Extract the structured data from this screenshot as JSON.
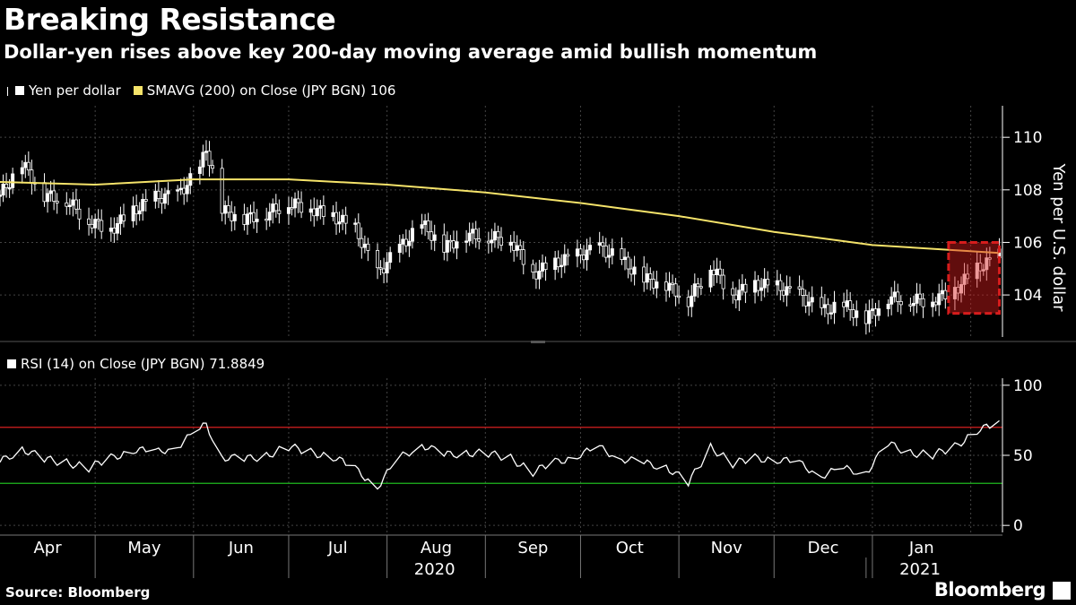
{
  "title": "Breaking Resistance",
  "subtitle": "Dollar-yen rises above key 200-day moving average amid bullish momentum",
  "legend_top": {
    "series1": "Yen per dollar",
    "series2": "SMAVG (200)  on Close (JPY BGN) 106"
  },
  "legend_bottom": {
    "series1": "RSI (14)  on Close (JPY BGN) 71.8849"
  },
  "source": "Source: Bloomberg",
  "brand": "Bloomberg",
  "colors": {
    "price": "#ffffff",
    "sma": "#f5e36a",
    "rsi": "#ffffff",
    "overbought": "#d62020",
    "oversold": "#1fb81f",
    "highlight": "#d61c1c"
  },
  "chart_data": [
    {
      "type": "candlestick",
      "ylabel": "Yen per U.S. dollar",
      "ylim": [
        102.4,
        111.2
      ],
      "yticks": [
        104,
        106,
        108,
        110
      ],
      "months": [
        "Apr",
        "May",
        "Jun",
        "Jul",
        "Aug",
        "Sep",
        "Oct",
        "Nov",
        "Dec",
        "Jan"
      ],
      "year_labels": [
        "2020",
        "2021"
      ],
      "series": [
        {
          "name": "Yen per dollar",
          "x": [
            "Apr 1",
            "Apr 8",
            "Apr 15",
            "Apr 22",
            "Apr 29",
            "May 6",
            "May 13",
            "May 20",
            "May 27",
            "Jun 3",
            "Jun 5",
            "Jun 10",
            "Jun 17",
            "Jun 24",
            "Jul 1",
            "Jul 8",
            "Jul 15",
            "Jul 22",
            "Jul 29",
            "Aug 5",
            "Aug 12",
            "Aug 19",
            "Aug 26",
            "Sep 2",
            "Sep 9",
            "Sep 16",
            "Sep 23",
            "Sep 30",
            "Oct 7",
            "Oct 14",
            "Oct 21",
            "Oct 28",
            "Nov 4",
            "Nov 11",
            "Nov 18",
            "Nov 25",
            "Dec 2",
            "Dec 9",
            "Dec 16",
            "Dec 23",
            "Dec 30",
            "Jan 6",
            "Jan 13",
            "Jan 20",
            "Jan 27",
            "Feb 3",
            "Feb 10"
          ],
          "values": [
            107.8,
            109.0,
            107.8,
            107.6,
            106.8,
            106.5,
            107.2,
            107.7,
            107.8,
            108.8,
            109.6,
            107.2,
            106.9,
            107.1,
            107.5,
            107.3,
            107.0,
            106.5,
            104.8,
            105.8,
            106.7,
            105.8,
            106.3,
            106.2,
            106.1,
            104.8,
            105.2,
            105.5,
            105.8,
            105.3,
            104.6,
            104.4,
            103.8,
            105.1,
            104.0,
            104.4,
            104.3,
            104.0,
            103.4,
            103.6,
            103.1,
            103.9,
            103.8,
            103.8,
            104.2,
            105.0,
            105.5
          ]
        },
        {
          "name": "SMAVG (200)",
          "x": [
            "Apr 1",
            "May 1",
            "Jun 1",
            "Jul 1",
            "Aug 1",
            "Sep 1",
            "Oct 1",
            "Nov 1",
            "Dec 1",
            "Jan 1",
            "Feb 10"
          ],
          "values": [
            108.3,
            108.2,
            108.4,
            108.4,
            108.2,
            107.9,
            107.5,
            107.0,
            106.4,
            105.9,
            105.6
          ]
        }
      ],
      "annotation": {
        "type": "box",
        "x": [
          "Jan 25",
          "Feb 10"
        ],
        "y": [
          103.3,
          106.0
        ]
      }
    },
    {
      "type": "line",
      "ylim": [
        -5,
        105
      ],
      "yticks": [
        0,
        50,
        100
      ],
      "hlines": [
        70,
        30
      ],
      "series": [
        {
          "name": "RSI (14)",
          "x": [
            "Apr 1",
            "Apr 8",
            "Apr 15",
            "Apr 22",
            "Apr 29",
            "May 6",
            "May 13",
            "May 20",
            "May 27",
            "Jun 3",
            "Jun 5",
            "Jun 10",
            "Jun 17",
            "Jun 24",
            "Jul 1",
            "Jul 8",
            "Jul 15",
            "Jul 22",
            "Jul 29",
            "Aug 5",
            "Aug 12",
            "Aug 19",
            "Aug 26",
            "Sep 2",
            "Sep 9",
            "Sep 16",
            "Sep 23",
            "Sep 30",
            "Oct 7",
            "Oct 14",
            "Oct 21",
            "Oct 28",
            "Nov 4",
            "Nov 11",
            "Nov 18",
            "Nov 25",
            "Dec 2",
            "Dec 9",
            "Dec 16",
            "Dec 23",
            "Dec 30",
            "Jan 6",
            "Jan 13",
            "Jan 20",
            "Jan 27",
            "Feb 3",
            "Feb 10"
          ],
          "values": [
            45,
            55,
            47,
            45,
            41,
            48,
            54,
            52,
            57,
            68,
            72,
            49,
            47,
            50,
            56,
            52,
            49,
            40,
            28,
            48,
            58,
            50,
            52,
            51,
            48,
            38,
            45,
            50,
            55,
            48,
            44,
            42,
            30,
            56,
            44,
            48,
            47,
            44,
            36,
            40,
            38,
            58,
            52,
            50,
            56,
            68,
            72
          ]
        }
      ]
    }
  ]
}
